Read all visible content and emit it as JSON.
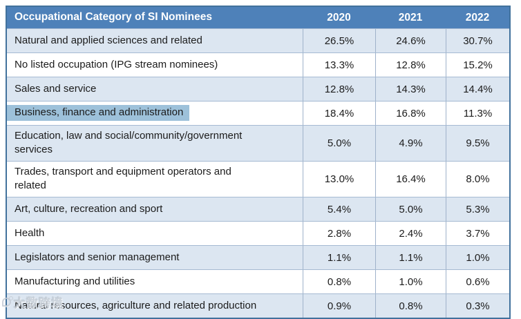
{
  "table": {
    "header": {
      "category": "Occupational Category of SI Nominees",
      "years": [
        "2020",
        "2021",
        "2022"
      ]
    },
    "rows": [
      {
        "category": "Natural and applied sciences and related",
        "values": [
          "26.5%",
          "24.6%",
          "30.7%"
        ],
        "highlighted": false
      },
      {
        "category": "No listed occupation (IPG stream nominees)",
        "values": [
          "13.3%",
          "12.8%",
          "15.2%"
        ],
        "highlighted": false
      },
      {
        "category": "Sales and service",
        "values": [
          "12.8%",
          "14.3%",
          "14.4%"
        ],
        "highlighted": false
      },
      {
        "category": "Business, finance and administration",
        "values": [
          "18.4%",
          "16.8%",
          "11.3%"
        ],
        "highlighted": true
      },
      {
        "category": "Education, law and social/community/government\nservices",
        "values": [
          "5.0%",
          "4.9%",
          "9.5%"
        ],
        "highlighted": false
      },
      {
        "category": "Trades, transport and equipment operators and\nrelated",
        "values": [
          "13.0%",
          "16.4%",
          "8.0%"
        ],
        "highlighted": false
      },
      {
        "category": "Art, culture, recreation and sport",
        "values": [
          "5.4%",
          "5.0%",
          "5.3%"
        ],
        "highlighted": false
      },
      {
        "category": "Health",
        "values": [
          "2.8%",
          "2.4%",
          "3.7%"
        ],
        "highlighted": false
      },
      {
        "category": "Legislators and senior management",
        "values": [
          "1.1%",
          "1.1%",
          "1.0%"
        ],
        "highlighted": false
      },
      {
        "category": "Manufacturing and utilities",
        "values": [
          "0.8%",
          "1.0%",
          "0.6%"
        ],
        "highlighted": false
      },
      {
        "category": "Natural resources, agriculture and related production",
        "values": [
          "0.9%",
          "0.8%",
          "0.3%"
        ],
        "highlighted": false
      }
    ]
  },
  "watermark": {
    "text": "大数跨境"
  },
  "colors": {
    "header_bg": "#4e81b9",
    "stripe_bg": "#dce6f1",
    "border_outer": "#41719c",
    "highlight": "#9dc1da"
  }
}
